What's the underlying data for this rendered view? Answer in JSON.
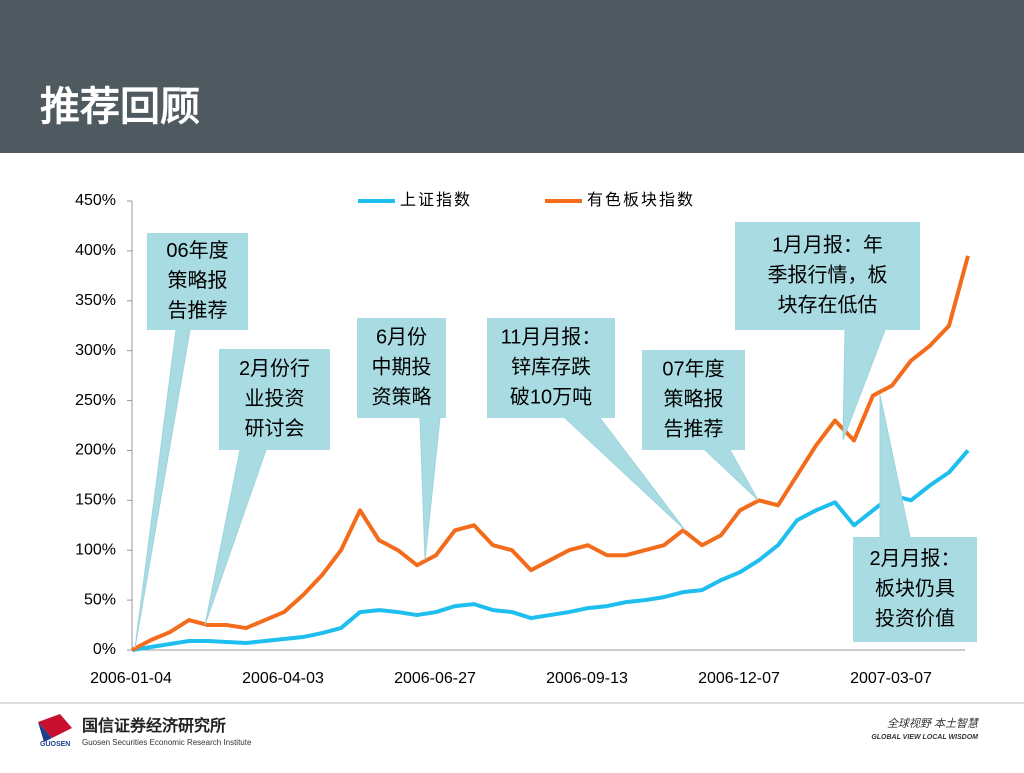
{
  "slide": {
    "title": "推荐回顾",
    "org_cn": "国信证券经济研究所",
    "org_en": "Guosen Securities Economic Research Institute",
    "logo": "GUOSEN",
    "motto_cn": "全球视野  本土智慧",
    "motto_en": "GLOBAL VIEW   LOCAL WISDOM"
  },
  "chart_data": {
    "type": "line",
    "categories": [
      "2006-01-04",
      null,
      null,
      null,
      null,
      null,
      null,
      null,
      "2006-04-03",
      null,
      null,
      null,
      null,
      null,
      null,
      null,
      "2006-06-27",
      null,
      null,
      null,
      null,
      null,
      null,
      null,
      "2006-09-13",
      null,
      null,
      null,
      null,
      null,
      null,
      null,
      "2006-12-07",
      null,
      null,
      null,
      null,
      null,
      null,
      null,
      "2007-03-07",
      null,
      null,
      null,
      null
    ],
    "series": [
      {
        "name": "上证指数",
        "color": "#1ebfef",
        "values": [
          0,
          3,
          6,
          9,
          9,
          8,
          7,
          9,
          11,
          13,
          17,
          22,
          38,
          40,
          38,
          35,
          38,
          44,
          46,
          40,
          38,
          32,
          35,
          38,
          42,
          44,
          48,
          50,
          53,
          58,
          60,
          70,
          78,
          90,
          105,
          130,
          140,
          148,
          125,
          140,
          155,
          150,
          165,
          178,
          200
        ]
      },
      {
        "name": "有色板块指数",
        "color": "#f36c1c",
        "values": [
          0,
          10,
          18,
          30,
          25,
          25,
          22,
          30,
          38,
          55,
          75,
          100,
          140,
          110,
          100,
          85,
          95,
          120,
          125,
          105,
          100,
          80,
          90,
          100,
          105,
          95,
          95,
          100,
          105,
          120,
          105,
          115,
          140,
          150,
          145,
          175,
          205,
          230,
          210,
          255,
          265,
          290,
          305,
          325,
          395
        ]
      }
    ],
    "ylim": [
      0,
      450
    ],
    "yticks": [
      {
        "value": 0,
        "label": "0%"
      },
      {
        "value": 50,
        "label": "50%"
      },
      {
        "value": 100,
        "label": "100%"
      },
      {
        "value": 150,
        "label": "150%"
      },
      {
        "value": 200,
        "label": "200%"
      },
      {
        "value": 250,
        "label": "250%"
      },
      {
        "value": 300,
        "label": "300%"
      },
      {
        "value": 350,
        "label": "350%"
      },
      {
        "value": 400,
        "label": "400%"
      },
      {
        "value": 450,
        "label": "450%"
      }
    ],
    "legend": "top",
    "annotations": [
      [
        "06年度",
        "策略报",
        "告推荐"
      ],
      [
        "2月份行",
        "业投资",
        "研讨会"
      ],
      [
        "6月份",
        "中期投",
        "资策略"
      ],
      [
        "11月月报：",
        "锌库存跌",
        "破10万吨"
      ],
      [
        "07年度",
        "策略报",
        "告推荐"
      ],
      [
        "1月月报：年",
        "季报行情，板",
        "块存在低估"
      ],
      [
        "2月月报：",
        "板块仍具",
        "投资价值"
      ]
    ]
  }
}
